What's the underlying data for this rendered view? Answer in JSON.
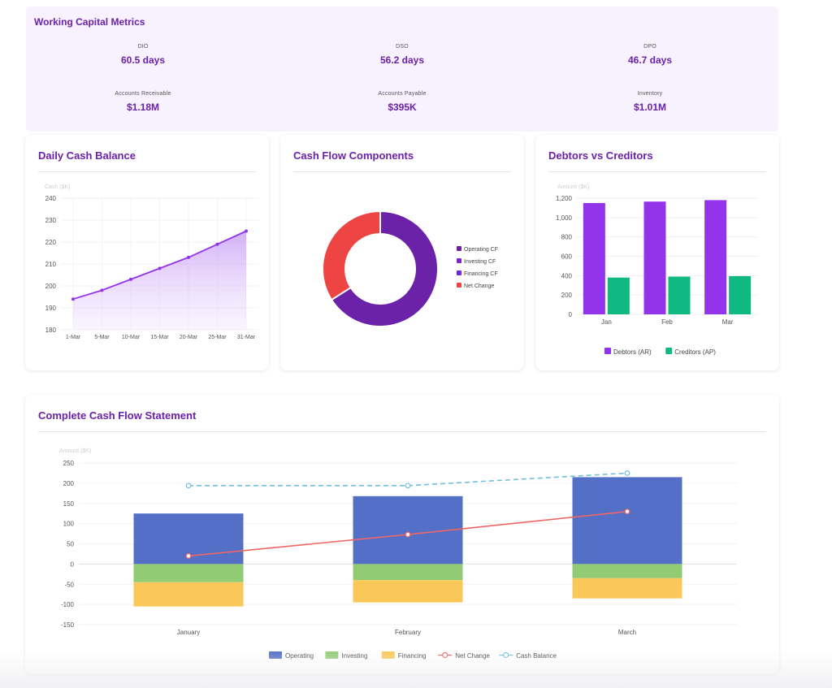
{
  "working_capital": {
    "title": "Working Capital Metrics",
    "metrics": [
      {
        "label": "DIO",
        "value": "60.5 days"
      },
      {
        "label": "DSO",
        "value": "56.2 days"
      },
      {
        "label": "DPO",
        "value": "46.7 days"
      },
      {
        "label": "Accounts Receivable",
        "value": "$1.18M"
      },
      {
        "label": "Accounts Payable",
        "value": "$395K"
      },
      {
        "label": "Inventory",
        "value": "$1.01M"
      }
    ]
  },
  "daily_cash": {
    "title": "Daily Cash Balance",
    "chart_data": {
      "type": "area",
      "title": "Daily Cash Balance",
      "ylabel": "Cash ($K)",
      "x": [
        "1-Mar",
        "5-Mar",
        "10-Mar",
        "15-Mar",
        "20-Mar",
        "25-Mar",
        "31-Mar"
      ],
      "values": [
        194,
        198,
        203,
        208,
        213,
        219,
        225
      ],
      "ylim": [
        180,
        240
      ],
      "yticks": [
        180,
        190,
        200,
        210,
        220,
        230,
        240
      ],
      "color": "#9333ea"
    }
  },
  "cash_flow_components": {
    "title": "Cash Flow Components",
    "chart_data": {
      "type": "pie",
      "title": "Cash Flow Components",
      "labels": [
        "Operating CF",
        "Investing CF",
        "Financing CF",
        "Net Change"
      ],
      "values": [
        66,
        0,
        0,
        34
      ],
      "colors": [
        "#6b21a8",
        "#7e22ce",
        "#6d28d9",
        "#ef4444"
      ],
      "legend": "right"
    }
  },
  "debtors_creditors": {
    "title": "Debtors vs Creditors",
    "chart_data": {
      "type": "bar",
      "title": "Debtors vs Creditors",
      "ylabel": "Amount ($K)",
      "categories": [
        "Jan",
        "Feb",
        "Mar"
      ],
      "series": [
        {
          "name": "Debtors (AR)",
          "values": [
            1150,
            1165,
            1180
          ],
          "color": "#9333ea"
        },
        {
          "name": "Creditors (AP)",
          "values": [
            380,
            390,
            395
          ],
          "color": "#10b981"
        }
      ],
      "ylim": [
        0,
        1200
      ],
      "yticks": [
        "0",
        "200",
        "400",
        "600",
        "800",
        "1,000",
        "1,200"
      ],
      "legend": "bottom"
    }
  },
  "cash_flow_statement": {
    "title": "Complete Cash Flow Statement",
    "chart_data": {
      "type": "bar",
      "title": "Complete Cash Flow Statement",
      "ylabel": "Amount ($K)",
      "categories": [
        "January",
        "February",
        "March"
      ],
      "stacked": true,
      "series": [
        {
          "name": "Operating",
          "kind": "bar",
          "values": [
            125,
            168,
            215
          ],
          "color": "#5470c6"
        },
        {
          "name": "Investing",
          "kind": "bar",
          "values": [
            -45,
            -40,
            -35
          ],
          "color": "#91cc75"
        },
        {
          "name": "Financing",
          "kind": "bar",
          "values": [
            -60,
            -55,
            -50
          ],
          "color": "#fac858"
        },
        {
          "name": "Net Change",
          "kind": "line",
          "values": [
            20,
            73,
            130
          ],
          "color": "#ee6666"
        },
        {
          "name": "Cash Balance",
          "kind": "dashed-line",
          "values": [
            194,
            194,
            225
          ],
          "color": "#73c0de"
        }
      ],
      "ylim": [
        -150,
        250
      ],
      "yticks": [
        -150,
        -100,
        -50,
        0,
        50,
        100,
        150,
        200,
        250
      ],
      "legend": "bottom"
    }
  }
}
